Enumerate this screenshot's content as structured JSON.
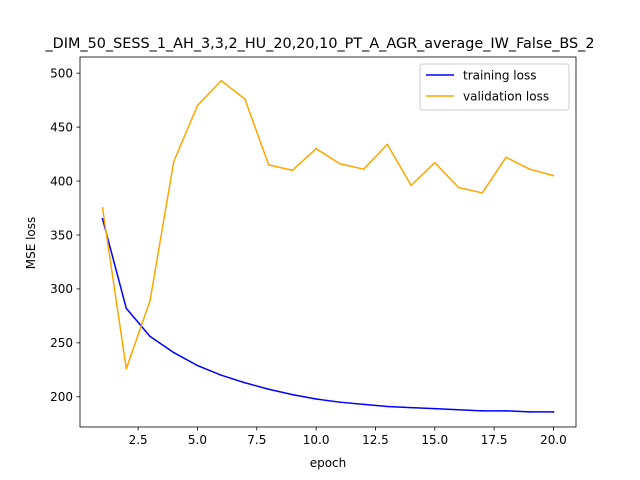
{
  "chart_data": {
    "type": "line",
    "title": "_DIM_50_SESS_1_AH_3,3,2_HU_20,20,10_PT_A_AGR_average_IW_False_BS_2",
    "xlabel": "epoch",
    "ylabel": "MSE loss",
    "xlim": [
      0.05,
      20.95
    ],
    "ylim": [
      172,
      515
    ],
    "xticks": [
      2.5,
      5.0,
      7.5,
      10.0,
      12.5,
      15.0,
      17.5,
      20.0
    ],
    "xtick_labels": [
      "2.5",
      "5.0",
      "7.5",
      "10.0",
      "12.5",
      "15.0",
      "17.5",
      "20.0"
    ],
    "yticks": [
      200,
      250,
      300,
      350,
      400,
      450,
      500
    ],
    "ytick_labels": [
      "200",
      "250",
      "300",
      "350",
      "400",
      "450",
      "500"
    ],
    "grid": false,
    "legend_position": "top-right",
    "x": [
      1,
      2,
      3,
      4,
      5,
      6,
      7,
      8,
      9,
      10,
      11,
      12,
      13,
      14,
      15,
      16,
      17,
      18,
      19,
      20
    ],
    "series": [
      {
        "name": "training loss",
        "color": "#0000ff",
        "values": [
          365,
          282,
          256,
          241,
          229,
          220,
          213,
          207,
          202,
          198,
          195,
          193,
          191,
          190,
          189,
          188,
          187,
          187,
          186,
          186
        ]
      },
      {
        "name": "validation loss",
        "color": "#ffa500",
        "values": [
          375,
          226,
          289,
          418,
          470,
          493,
          476,
          415,
          410,
          430,
          416,
          411,
          434,
          396,
          417,
          394,
          389,
          422,
          411,
          405
        ]
      }
    ]
  }
}
